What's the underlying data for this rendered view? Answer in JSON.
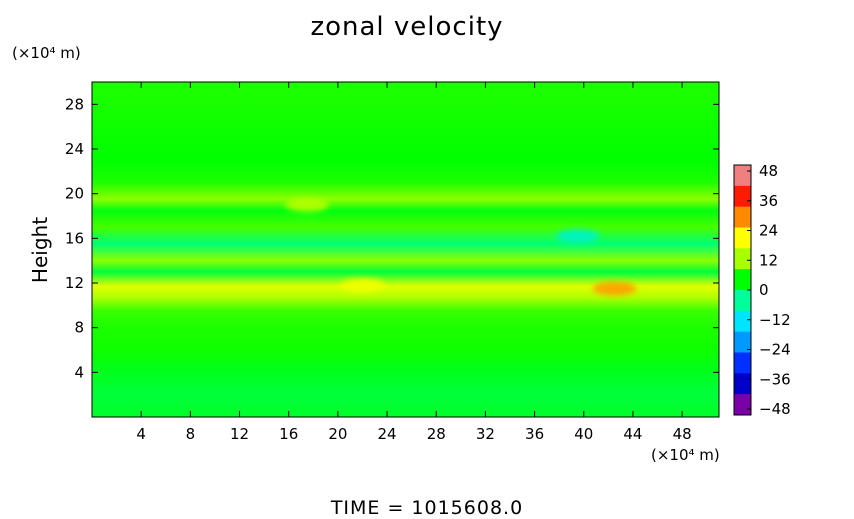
{
  "chart_data": {
    "type": "heatmap",
    "title": "zonal velocity",
    "xlabel": "",
    "x_unit": "(×10⁴ m)",
    "ylabel": "Height",
    "y_unit": "(×10⁴ m)",
    "x_ticks": [
      4,
      8,
      12,
      16,
      20,
      24,
      28,
      32,
      36,
      40,
      44,
      48
    ],
    "y_ticks": [
      4,
      8,
      12,
      16,
      20,
      24,
      28
    ],
    "xlim": [
      0,
      51
    ],
    "ylim": [
      0,
      30
    ],
    "colorbar": {
      "ticks": [
        48,
        36,
        24,
        12,
        0,
        -12,
        -24,
        -36,
        -48
      ],
      "range": [
        -48,
        48
      ],
      "colors": [
        "#f08080",
        "#ff1a00",
        "#ff8a00",
        "#ffff00",
        "#a8ff00",
        "#00ff00",
        "#00ff9a",
        "#00e5ff",
        "#0099ff",
        "#0030ff",
        "#0000c8",
        "#7a00a8"
      ]
    },
    "bands": [
      {
        "y": 29,
        "value": 2
      },
      {
        "y": 26,
        "value": 1
      },
      {
        "y": 23,
        "value": 0
      },
      {
        "y": 21,
        "value": 2
      },
      {
        "y": 19.5,
        "value": 10
      },
      {
        "y": 18.5,
        "value": -1
      },
      {
        "y": 17,
        "value": 5
      },
      {
        "y": 15.5,
        "value": -8
      },
      {
        "y": 14,
        "value": 10
      },
      {
        "y": 13,
        "value": -4
      },
      {
        "y": 11.7,
        "value": 20
      },
      {
        "y": 10.7,
        "value": 13
      },
      {
        "y": 9.5,
        "value": 4
      },
      {
        "y": 8,
        "value": 2
      },
      {
        "y": 6,
        "value": 1
      },
      {
        "y": 4,
        "value": -2
      },
      {
        "y": 2,
        "value": -4
      },
      {
        "y": 0.5,
        "value": -3
      }
    ],
    "features": [
      {
        "x": 42.5,
        "y": 11.5,
        "value": 34
      },
      {
        "x": 39.5,
        "y": 16.2,
        "value": -16
      },
      {
        "x": 22,
        "y": 11.8,
        "value": 22
      },
      {
        "x": 17.5,
        "y": 19,
        "value": 14
      }
    ]
  },
  "footer": {
    "time_text": "TIME  =  1015608.0"
  }
}
